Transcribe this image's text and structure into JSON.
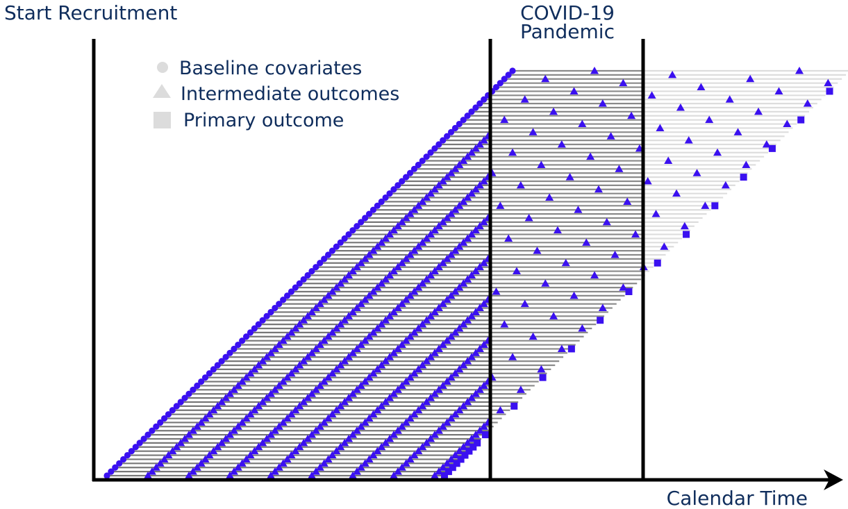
{
  "labels": {
    "start": "Start Recruitment",
    "covid_line1": "COVID-19",
    "covid_line2": "Pandemic",
    "x_axis": "Calendar Time"
  },
  "legend": {
    "baseline": "Baseline covariates",
    "intermediate": "Intermediate outcomes",
    "primary": "Primary outcome"
  },
  "colors": {
    "marker": "#3a10f0",
    "marker_stroke": "#1a0a9c",
    "follow_up_before": "#777777",
    "follow_up_during": "#8a8a8a",
    "follow_up_after": "#dddddd",
    "legend_marker": "#dcdcdc",
    "axis": "#000000"
  },
  "diagram": {
    "participants": 100,
    "intermediate_outcomes_per_participant": 8,
    "primary_outcome_count": 1
  }
}
